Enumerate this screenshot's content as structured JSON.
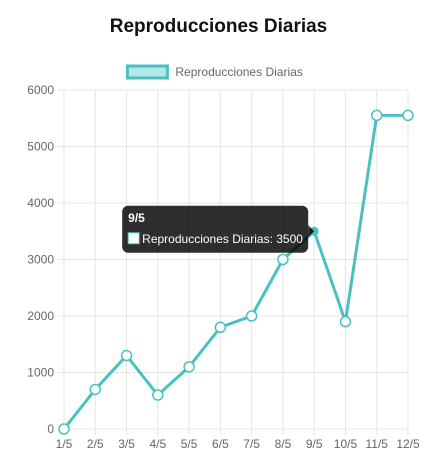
{
  "chart_data": {
    "type": "line",
    "title": "Reproducciones Diarias",
    "categories": [
      "1/5",
      "2/5",
      "3/5",
      "4/5",
      "5/5",
      "6/5",
      "7/5",
      "8/5",
      "9/5",
      "10/5",
      "11/5",
      "12/5"
    ],
    "series": [
      {
        "name": "Reproducciones Diarias",
        "values": [
          0,
          700,
          1300,
          600,
          1100,
          1800,
          2000,
          3000,
          3500,
          1900,
          5550,
          5550
        ]
      }
    ],
    "ylim": [
      0,
      6000
    ],
    "yticks": [
      0,
      1000,
      2000,
      3000,
      4000,
      5000,
      6000
    ],
    "grid": true,
    "legend_position": "top",
    "line_color": "#4bc0c0",
    "fill_color": "#b3e6e6",
    "tooltip": {
      "index": 8,
      "title": "9/5",
      "label": "Reproducciones Diarias: 3500"
    }
  }
}
